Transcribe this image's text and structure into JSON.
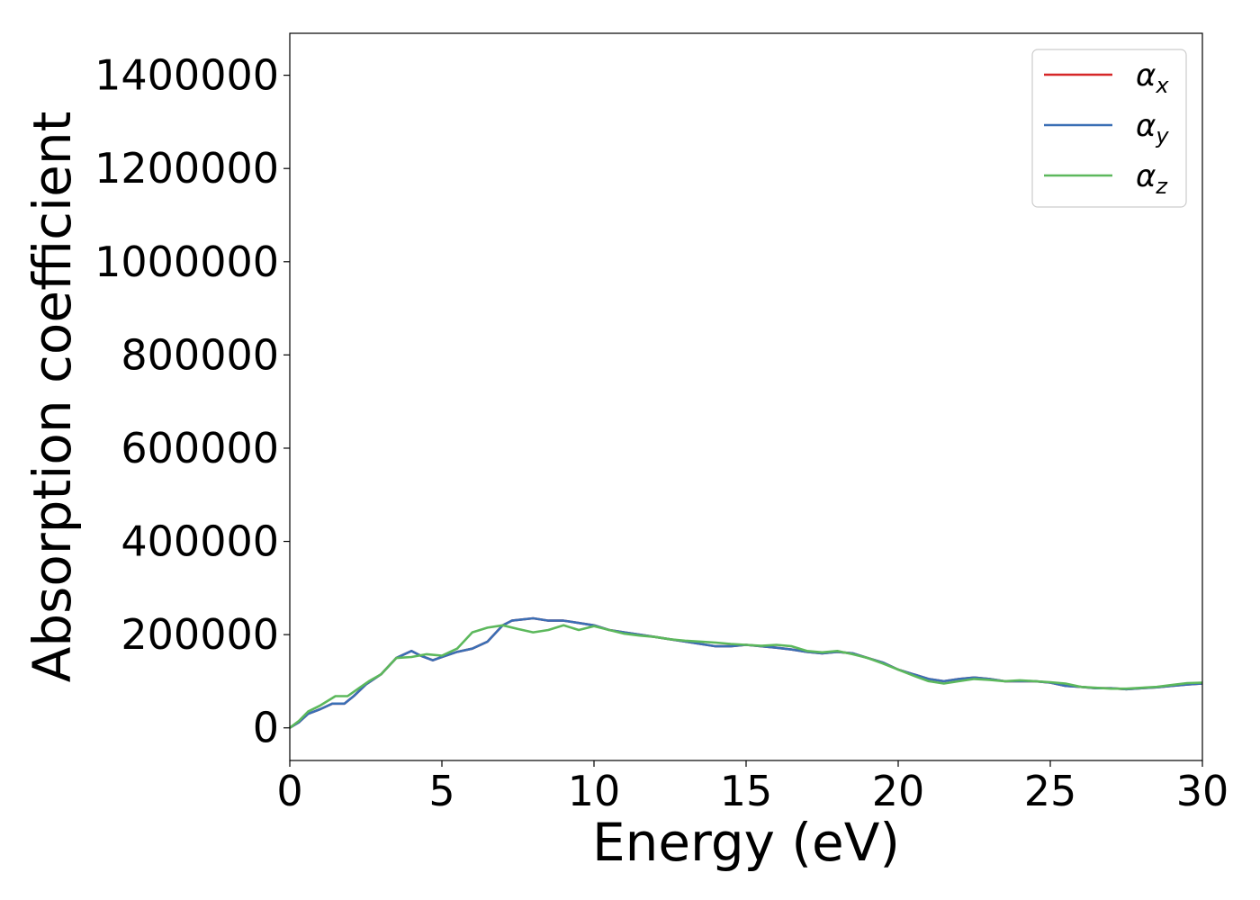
{
  "chart_data": {
    "type": "line",
    "title": "",
    "xlabel": "Energy (eV)",
    "ylabel": "Absorption coefficient",
    "xlim": [
      0,
      30
    ],
    "ylim": [
      -70000,
      1490000
    ],
    "xticks": [
      0,
      5,
      10,
      15,
      20,
      25,
      30
    ],
    "yticks": [
      0,
      200000,
      400000,
      600000,
      800000,
      1000000,
      1200000,
      1400000
    ],
    "xtick_labels": [
      "0",
      "5",
      "10",
      "15",
      "20",
      "25",
      "30"
    ],
    "ytick_labels": [
      "0",
      "200000",
      "400000",
      "600000",
      "800000",
      "1000000",
      "1200000",
      "1400000"
    ],
    "grid": false,
    "legend_position": "top-right",
    "series": [
      {
        "name": "α",
        "subscript": "x",
        "color": "#d62728",
        "x": [
          0,
          0.3,
          0.6,
          1.0,
          1.4,
          1.8,
          2.1,
          2.5,
          3.0,
          3.5,
          4.0,
          4.3,
          4.7,
          5.0,
          5.5,
          6.0,
          6.5,
          7.0,
          7.3,
          8.0,
          8.5,
          9.0,
          9.5,
          10.0,
          10.5,
          11.0,
          11.5,
          12.0,
          12.5,
          13.0,
          13.5,
          14.0,
          14.5,
          15.0,
          15.5,
          16.0,
          16.5,
          17.0,
          17.5,
          18.0,
          18.5,
          19.0,
          19.5,
          20.0,
          20.5,
          21.0,
          21.5,
          22.0,
          22.5,
          23.0,
          23.5,
          24.0,
          24.5,
          25.0,
          25.5,
          26.0,
          26.5,
          27.0,
          27.5,
          28.0,
          28.5,
          29.0,
          29.5,
          30.0
        ],
        "y": [
          0,
          12000,
          30000,
          40000,
          52000,
          52000,
          68000,
          93000,
          115000,
          150000,
          165000,
          155000,
          145000,
          152000,
          163000,
          170000,
          185000,
          220000,
          230000,
          235000,
          230000,
          230000,
          225000,
          220000,
          210000,
          205000,
          200000,
          195000,
          190000,
          185000,
          180000,
          175000,
          175000,
          178000,
          175000,
          172000,
          168000,
          163000,
          160000,
          163000,
          160000,
          150000,
          140000,
          125000,
          115000,
          105000,
          100000,
          105000,
          108000,
          105000,
          100000,
          100000,
          100000,
          97000,
          90000,
          88000,
          85000,
          85000,
          83000,
          85000,
          87000,
          90000,
          93000,
          95000
        ]
      },
      {
        "name": "α",
        "subscript": "y",
        "color": "#3a6fb5",
        "x": [
          0,
          0.3,
          0.6,
          1.0,
          1.4,
          1.8,
          2.1,
          2.5,
          3.0,
          3.5,
          4.0,
          4.3,
          4.7,
          5.0,
          5.5,
          6.0,
          6.5,
          7.0,
          7.3,
          8.0,
          8.5,
          9.0,
          9.5,
          10.0,
          10.5,
          11.0,
          11.5,
          12.0,
          12.5,
          13.0,
          13.5,
          14.0,
          14.5,
          15.0,
          15.5,
          16.0,
          16.5,
          17.0,
          17.5,
          18.0,
          18.5,
          19.0,
          19.5,
          20.0,
          20.5,
          21.0,
          21.5,
          22.0,
          22.5,
          23.0,
          23.5,
          24.0,
          24.5,
          25.0,
          25.5,
          26.0,
          26.5,
          27.0,
          27.5,
          28.0,
          28.5,
          29.0,
          29.5,
          30.0
        ],
        "y": [
          0,
          12000,
          30000,
          40000,
          52000,
          52000,
          68000,
          93000,
          115000,
          150000,
          165000,
          155000,
          145000,
          152000,
          163000,
          170000,
          185000,
          220000,
          230000,
          235000,
          230000,
          230000,
          225000,
          220000,
          210000,
          205000,
          200000,
          195000,
          190000,
          185000,
          180000,
          175000,
          175000,
          178000,
          175000,
          172000,
          168000,
          163000,
          160000,
          163000,
          160000,
          150000,
          140000,
          125000,
          115000,
          105000,
          100000,
          105000,
          108000,
          105000,
          100000,
          100000,
          100000,
          97000,
          90000,
          88000,
          85000,
          85000,
          83000,
          85000,
          87000,
          90000,
          93000,
          95000
        ]
      },
      {
        "name": "α",
        "subscript": "z",
        "color": "#5cb85c",
        "x": [
          0,
          0.3,
          0.6,
          1.0,
          1.5,
          1.9,
          2.2,
          2.6,
          3.0,
          3.5,
          4.0,
          4.5,
          5.0,
          5.5,
          6.0,
          6.5,
          7.0,
          7.5,
          8.0,
          8.5,
          9.0,
          9.5,
          10.0,
          10.5,
          11.0,
          11.5,
          12.0,
          12.5,
          13.0,
          13.5,
          14.0,
          14.5,
          15.0,
          15.5,
          16.0,
          16.5,
          17.0,
          17.5,
          18.0,
          18.5,
          19.0,
          19.5,
          20.0,
          20.5,
          21.0,
          21.5,
          22.0,
          22.5,
          23.0,
          23.5,
          24.0,
          24.5,
          25.0,
          25.5,
          26.0,
          26.5,
          27.0,
          27.5,
          28.0,
          28.5,
          29.0,
          29.5,
          30.0
        ],
        "y": [
          0,
          15000,
          35000,
          48000,
          68000,
          68000,
          82000,
          100000,
          115000,
          150000,
          152000,
          158000,
          155000,
          170000,
          205000,
          215000,
          220000,
          212000,
          205000,
          210000,
          220000,
          210000,
          218000,
          210000,
          202000,
          198000,
          195000,
          190000,
          187000,
          185000,
          183000,
          180000,
          178000,
          176000,
          178000,
          175000,
          165000,
          162000,
          165000,
          158000,
          150000,
          138000,
          125000,
          112000,
          100000,
          95000,
          100000,
          105000,
          103000,
          100000,
          102000,
          100000,
          98000,
          95000,
          88000,
          86000,
          84000,
          84000,
          86000,
          88000,
          92000,
          96000,
          97000
        ]
      }
    ]
  }
}
